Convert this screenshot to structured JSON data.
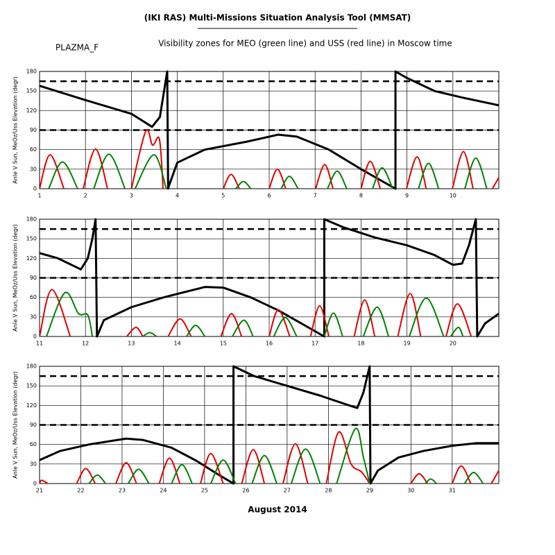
{
  "header": {
    "title": "(IKI RAS) Multi-Missions Situation Analysis Tool (MMSAT)",
    "satellite": "PLAZMA_F",
    "subtitle": "Visibility zones for MEO (green line) and USS (red line) in Moscow time"
  },
  "xlabel": "August 2014",
  "chart_data": [
    {
      "type": "line",
      "ylabel": "Anle V Sun, MeOz/Uss Elevation (degr)",
      "xlim": [
        1,
        11
      ],
      "xticks": [
        1,
        2,
        3,
        4,
        5,
        6,
        7,
        8,
        9,
        10
      ],
      "ylim": [
        0,
        180
      ],
      "yticks": [
        0,
        30,
        60,
        90,
        120,
        150,
        180
      ],
      "grid": true,
      "dashed_lines": [
        165,
        90
      ],
      "series": [
        {
          "color": "#000000",
          "smooth": false,
          "x": [
            1,
            2,
            3,
            3.45,
            3.62,
            3.78,
            3.8,
            3.82,
            4.0,
            4.6,
            5.5,
            6.2,
            6.6,
            7.3,
            8.0,
            8.75,
            8.75,
            9,
            9.6,
            10.2,
            11
          ],
          "values": [
            158,
            136,
            115,
            95,
            110,
            180,
            0,
            5,
            40,
            60,
            72,
            83,
            80,
            60,
            30,
            0,
            180,
            170,
            150,
            140,
            128
          ]
        },
        {
          "color": "#e00000",
          "smooth": true,
          "x": [
            1.0,
            1.23,
            1.53,
            null,
            1.95,
            2.22,
            2.48,
            null,
            3.0,
            3.31,
            3.46,
            3.61,
            3.69,
            null,
            5.0,
            5.17,
            5.35,
            null,
            6.0,
            6.18,
            6.36,
            null,
            7.01,
            7.21,
            7.39,
            null,
            8.0,
            8.2,
            8.42,
            null,
            8.99,
            9.22,
            9.42,
            null,
            9.99,
            10.23,
            10.44,
            null,
            10.86,
            11.0
          ],
          "values": [
            0,
            52,
            0,
            null,
            0,
            61,
            0,
            null,
            0,
            88,
            67,
            76,
            0,
            null,
            0,
            22,
            0,
            null,
            0,
            30,
            0,
            null,
            0,
            37,
            0,
            null,
            0,
            42,
            0,
            null,
            0,
            49,
            0,
            null,
            0,
            57,
            0,
            null,
            0,
            17
          ]
        },
        {
          "color": "#008000",
          "smooth": true,
          "x": [
            1.2,
            1.5,
            1.83,
            null,
            2.18,
            2.51,
            2.86,
            null,
            3.08,
            3.49,
            3.76,
            null,
            5.27,
            5.44,
            5.6,
            null,
            6.26,
            6.44,
            6.63,
            null,
            7.27,
            7.48,
            7.69,
            null,
            8.25,
            8.46,
            8.69,
            null,
            9.25,
            9.47,
            9.69,
            null,
            10.26,
            10.5,
            10.74
          ],
          "values": [
            0,
            41,
            0,
            null,
            0,
            53,
            0,
            null,
            0,
            52,
            0,
            null,
            0,
            11,
            0,
            null,
            0,
            19,
            0,
            null,
            0,
            27,
            0,
            null,
            0,
            32,
            0,
            null,
            0,
            39,
            0,
            null,
            0,
            47,
            0
          ]
        }
      ]
    },
    {
      "type": "line",
      "ylabel": "Anle V Sun, MeOz/Uss Elevation (degr)",
      "xlim": [
        11,
        21
      ],
      "xticks": [
        11,
        12,
        13,
        14,
        15,
        16,
        17,
        18,
        19,
        20
      ],
      "ylim": [
        0,
        180
      ],
      "yticks": [
        0,
        30,
        60,
        90,
        120,
        150,
        180
      ],
      "grid": true,
      "dashed_lines": [
        165,
        90
      ],
      "series": [
        {
          "color": "#000000",
          "smooth": false,
          "x": [
            11,
            11.4,
            11.9,
            12.05,
            12.15,
            12.22,
            12.25,
            12.4,
            13,
            13.7,
            14.6,
            15,
            15.6,
            16.2,
            16.7,
            17.2,
            17.2,
            17.6,
            18.3,
            19,
            19.6,
            20.0,
            20.2,
            20.35,
            20.5,
            20.53,
            20.7,
            21
          ],
          "values": [
            128,
            120,
            103,
            120,
            150,
            180,
            0,
            25,
            45,
            60,
            76,
            75,
            60,
            40,
            20,
            0,
            180,
            168,
            152,
            140,
            125,
            110,
            112,
            140,
            180,
            0,
            20,
            35
          ]
        },
        {
          "color": "#e00000",
          "smooth": true,
          "x": [
            11.0,
            11.27,
            11.67,
            null,
            12.9,
            13.1,
            13.25,
            null,
            13.8,
            14.06,
            14.3,
            null,
            14.95,
            15.18,
            15.4,
            null,
            16.0,
            16.2,
            16.45,
            null,
            16.9,
            17.1,
            17.3,
            null,
            17.85,
            18.08,
            18.3,
            null,
            18.8,
            19.07,
            19.3,
            null,
            19.85,
            20.1,
            20.4
          ],
          "values": [
            0,
            72,
            0,
            null,
            0,
            14,
            0,
            null,
            0,
            27,
            0,
            null,
            0,
            35,
            0,
            null,
            0,
            41,
            0,
            null,
            0,
            47,
            0,
            null,
            0,
            56,
            0,
            null,
            0,
            66,
            0,
            null,
            0,
            50,
            0
          ]
        },
        {
          "color": "#008000",
          "smooth": true,
          "x": [
            11.15,
            11.55,
            11.85,
            12.05,
            12.15,
            null,
            13.25,
            13.4,
            13.55,
            null,
            14.2,
            14.4,
            14.6,
            null,
            15.2,
            15.45,
            15.65,
            null,
            16.1,
            16.35,
            16.6,
            null,
            17.2,
            17.4,
            17.6,
            null,
            18.05,
            18.35,
            18.6,
            null,
            19.05,
            19.42,
            19.8,
            null,
            19.95,
            20.12,
            20.22
          ],
          "values": [
            0,
            67,
            35,
            33,
            0,
            null,
            0,
            6,
            0,
            null,
            0,
            17,
            0,
            null,
            0,
            25,
            0,
            null,
            0,
            29,
            0,
            null,
            0,
            36,
            0,
            null,
            0,
            45,
            0,
            null,
            0,
            59,
            0,
            null,
            0,
            14,
            0
          ]
        }
      ]
    },
    {
      "type": "line",
      "ylabel": "Anle V Sun, MeOz/Uss Elevation (degr)",
      "xlim": [
        21,
        32.13
      ],
      "xticks": [
        21,
        22,
        23,
        24,
        25,
        26,
        27,
        28,
        29,
        30,
        31
      ],
      "ylim": [
        0,
        180
      ],
      "yticks": [
        0,
        30,
        60,
        90,
        120,
        150,
        180
      ],
      "grid": true,
      "dashed_lines": [
        165,
        90
      ],
      "series": [
        {
          "color": "#000000",
          "smooth": false,
          "x": [
            21,
            21.5,
            22.2,
            22.8,
            23.1,
            23.5,
            24.2,
            24.8,
            25.3,
            25.7,
            25.7,
            26.2,
            27,
            27.8,
            28.5,
            28.7,
            28.85,
            29.0,
            29.02,
            29.2,
            29.7,
            30.3,
            31,
            31.6,
            32.13
          ],
          "values": [
            36,
            50,
            60,
            66,
            69,
            67,
            55,
            35,
            15,
            0,
            180,
            165,
            150,
            135,
            120,
            116,
            140,
            180,
            0,
            20,
            40,
            50,
            58,
            62,
            62
          ]
        },
        {
          "color": "#e00000",
          "smooth": true,
          "x": [
            21.0,
            21.05,
            21.2,
            null,
            21.9,
            22.12,
            22.35,
            null,
            22.85,
            23.1,
            23.35,
            null,
            23.9,
            24.15,
            24.4,
            null,
            24.9,
            25.15,
            25.45,
            null,
            25.9,
            26.18,
            26.45,
            null,
            26.9,
            27.2,
            27.5,
            null,
            27.95,
            28.25,
            28.55,
            28.8,
            29.0,
            null,
            30.0,
            30.2,
            30.4,
            null,
            31.0,
            31.22,
            31.45,
            null,
            31.95,
            32.13
          ],
          "values": [
            0,
            5,
            0,
            null,
            0,
            23,
            0,
            null,
            0,
            32,
            0,
            null,
            0,
            39,
            0,
            null,
            0,
            46,
            0,
            null,
            0,
            52,
            0,
            null,
            0,
            61,
            0,
            null,
            0,
            79,
            30,
            18,
            0,
            null,
            0,
            15,
            0,
            null,
            0,
            27,
            0,
            null,
            0,
            20
          ]
        },
        {
          "color": "#008000",
          "smooth": true,
          "x": [
            22.2,
            22.4,
            22.6,
            null,
            23.15,
            23.4,
            23.65,
            null,
            24.2,
            24.45,
            24.7,
            null,
            25.15,
            25.45,
            25.75,
            null,
            26.15,
            26.45,
            26.75,
            null,
            27.1,
            27.45,
            27.8,
            null,
            28.2,
            28.65,
            28.85,
            29.0,
            null,
            30.35,
            30.48,
            30.62,
            null,
            31.3,
            31.52,
            31.75
          ],
          "values": [
            0,
            13,
            0,
            null,
            0,
            22,
            0,
            null,
            0,
            29,
            0,
            null,
            0,
            36,
            0,
            null,
            0,
            43,
            0,
            null,
            0,
            53,
            0,
            null,
            0,
            84,
            40,
            0,
            null,
            0,
            7,
            0,
            null,
            0,
            17,
            0
          ]
        }
      ]
    }
  ]
}
